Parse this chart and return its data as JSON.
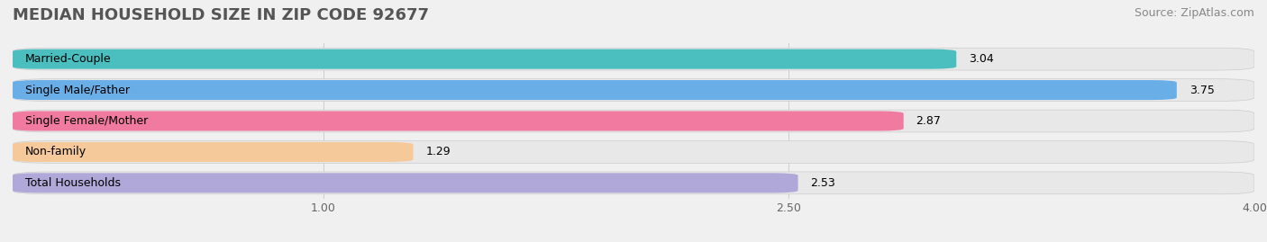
{
  "title": "MEDIAN HOUSEHOLD SIZE IN ZIP CODE 92677",
  "source": "Source: ZipAtlas.com",
  "categories": [
    "Married-Couple",
    "Single Male/Father",
    "Single Female/Mother",
    "Non-family",
    "Total Households"
  ],
  "values": [
    3.04,
    3.75,
    2.87,
    1.29,
    2.53
  ],
  "bar_colors": [
    "#4bbfbf",
    "#6aaee8",
    "#f07aa0",
    "#f5c99a",
    "#b0a8d8"
  ],
  "bar_edge_colors": [
    "#3aafaf",
    "#5a9ed8",
    "#e06a90",
    "#e5b98a",
    "#a098c8"
  ],
  "xlim": [
    0.0,
    4.0
  ],
  "xticks": [
    1.0,
    2.5,
    4.0
  ],
  "background_color": "#f0f0f0",
  "bar_bg_color": "#e8e8e8",
  "title_fontsize": 13,
  "label_fontsize": 9,
  "value_fontsize": 9,
  "source_fontsize": 9
}
